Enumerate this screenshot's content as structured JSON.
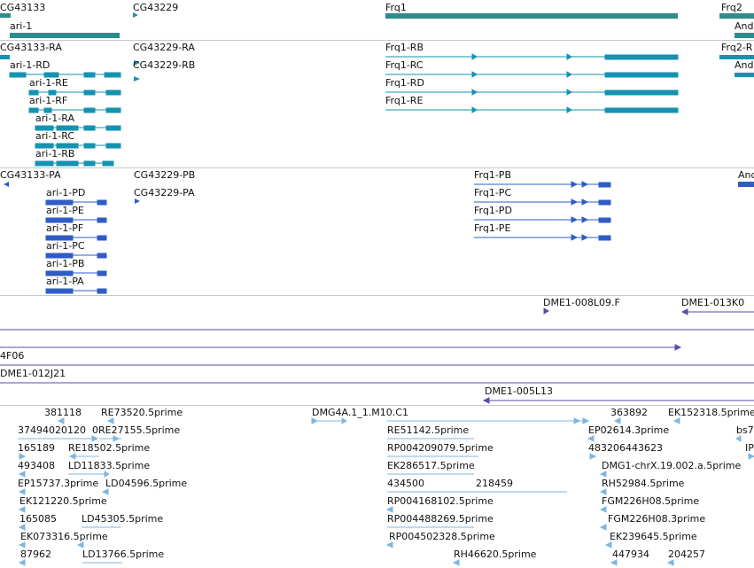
{
  "colors": {
    "gene": "#2e8c8c",
    "mrna_teal": "#1592b0",
    "mrna_blue": "#2f5cc6",
    "clone": "#5c4aa8",
    "est": "#7fb6df",
    "separator": "#c8c8c8"
  },
  "tracks": {
    "genes": [
      {
        "label": "CG43133"
      },
      {
        "label": "ari-1"
      },
      {
        "label": "CG43229"
      },
      {
        "label": "Frq1"
      },
      {
        "label": "Frq2"
      },
      {
        "label": "And"
      }
    ],
    "transcripts_teal": [
      {
        "label": "CG43133-RA"
      },
      {
        "label": "CG43229-RA"
      },
      {
        "label": "CG43229-RB"
      },
      {
        "label": "ari-1-RD"
      },
      {
        "label": "ari-1-RE"
      },
      {
        "label": "ari-1-RF"
      },
      {
        "label": "ari-1-RA"
      },
      {
        "label": "ari-1-RC"
      },
      {
        "label": "ari-1-RB"
      },
      {
        "label": "Frq1-RB"
      },
      {
        "label": "Frq1-RC"
      },
      {
        "label": "Frq1-RD"
      },
      {
        "label": "Frq1-RE"
      },
      {
        "label": "Frq2-R"
      },
      {
        "label": "And"
      }
    ],
    "transcripts_blue": [
      {
        "label": "CG43133-PA"
      },
      {
        "label": "CG43229-PB"
      },
      {
        "label": "CG43229-PA"
      },
      {
        "label": "ari-1-PD"
      },
      {
        "label": "ari-1-PE"
      },
      {
        "label": "ari-1-PF"
      },
      {
        "label": "ari-1-PC"
      },
      {
        "label": "ari-1-PB"
      },
      {
        "label": "ari-1-PA"
      },
      {
        "label": "Frq1-PB"
      },
      {
        "label": "Frq1-PC"
      },
      {
        "label": "Frq1-PD"
      },
      {
        "label": "Frq1-PE"
      },
      {
        "label": "And"
      }
    ],
    "clones": [
      {
        "label": "DME1-008L09.F"
      },
      {
        "label": "DME1-013K0"
      },
      {
        "label": "4F06"
      },
      {
        "label": "DME1-012J21"
      },
      {
        "label": "DME1-005L13"
      }
    ],
    "ests": [
      {
        "label": "381118"
      },
      {
        "label": "RE73520.5prime"
      },
      {
        "label": "DMG4A.1_1.M10.C1"
      },
      {
        "label": "363892"
      },
      {
        "label": "EK152318.5prime"
      },
      {
        "label": "37494020120"
      },
      {
        "label": "0RE27155.5prime"
      },
      {
        "label": "RE51142.5prime"
      },
      {
        "label": "EP02614.3prime"
      },
      {
        "label": "bs7"
      },
      {
        "label": "165189"
      },
      {
        "label": "RE18502.5prime"
      },
      {
        "label": "RP004209079.5prime"
      },
      {
        "label": "483206443623"
      },
      {
        "label": "IP"
      },
      {
        "label": "493408"
      },
      {
        "label": "LD11833.5prime"
      },
      {
        "label": "EK286517.5prime"
      },
      {
        "label": "DMG1-chrX.19.002.a.5prime"
      },
      {
        "label": "EP15737.3prime"
      },
      {
        "label": "LD04596.5prime"
      },
      {
        "label": "434500"
      },
      {
        "label": "218459"
      },
      {
        "label": "RH52984.5prime"
      },
      {
        "label": "EK121220.5prime"
      },
      {
        "label": "RP004168102.5prime"
      },
      {
        "label": "FGM226H08.5prime"
      },
      {
        "label": "165085"
      },
      {
        "label": "LD45305.5prime"
      },
      {
        "label": "RP004488269.5prime"
      },
      {
        "label": "FGM226H08.3prime"
      },
      {
        "label": "EK073316.5prime"
      },
      {
        "label": "RP004502328.5prime"
      },
      {
        "label": "EK239645.5prime"
      },
      {
        "label": "87962"
      },
      {
        "label": "LD13766.5prime"
      },
      {
        "label": "RH46620.5prime"
      },
      {
        "label": "447934"
      },
      {
        "label": "204257"
      }
    ]
  }
}
